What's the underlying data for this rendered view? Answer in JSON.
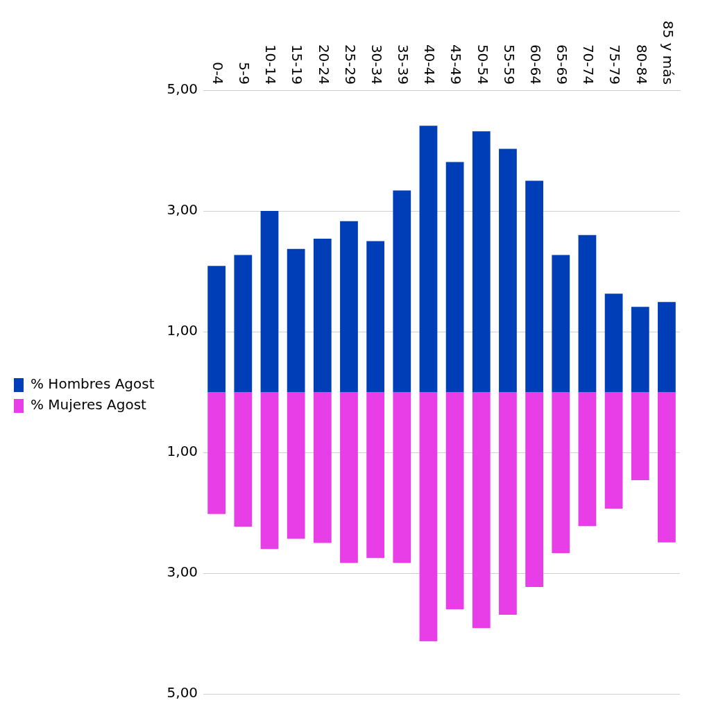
{
  "chart_data": {
    "type": "bar",
    "stacked": true,
    "categories": [
      "0-4",
      "5-9",
      "10-14",
      "15-19",
      "20-24",
      "25-29",
      "30-34",
      "35-39",
      "40-44",
      "45-49",
      "50-54",
      "55-59",
      "60-64",
      "65-69",
      "70-74",
      "75-79",
      "80-84",
      "85 y más"
    ],
    "series": [
      {
        "name": "% Hombres Agost",
        "color": "#003eb8",
        "values": [
          2.09,
          2.27,
          3.0,
          2.37,
          2.54,
          2.83,
          2.5,
          3.34,
          4.41,
          3.81,
          4.32,
          4.03,
          3.5,
          2.27,
          2.6,
          1.63,
          1.41,
          1.49
        ]
      },
      {
        "name": "% Mujeres Agost",
        "color": "#e83ee8",
        "values": [
          -2.02,
          -2.23,
          -2.6,
          -2.43,
          -2.5,
          -2.83,
          -2.75,
          -2.83,
          -4.13,
          -3.6,
          -3.91,
          -3.69,
          -3.23,
          -2.67,
          -2.22,
          -1.93,
          -1.46,
          -2.49
        ]
      }
    ],
    "ylim": [
      -5,
      5
    ],
    "yticks": [
      {
        "value": -5,
        "label": "5,00"
      },
      {
        "value": -3,
        "label": "3,00"
      },
      {
        "value": -1,
        "label": "1,00"
      },
      {
        "value": 1,
        "label": "1,00"
      },
      {
        "value": 3,
        "label": "3,00"
      },
      {
        "value": 5,
        "label": "5,00"
      }
    ],
    "grid": "y",
    "legend": "left"
  }
}
